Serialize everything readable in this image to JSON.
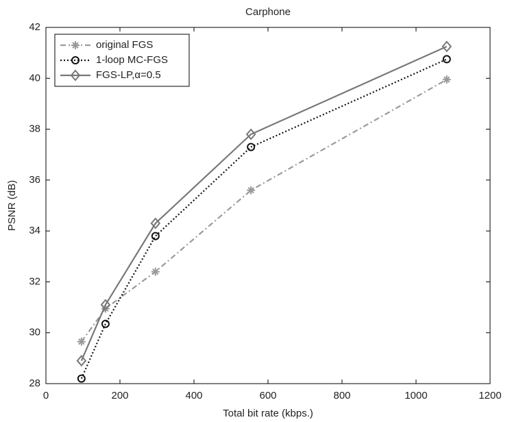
{
  "chart_data": {
    "type": "line",
    "title": "Carphone",
    "x_label": "Total bit rate (kbps.)",
    "y_label": "PSNR (dB)",
    "xlim": [
      0,
      1200
    ],
    "xticks": [
      0,
      200,
      400,
      600,
      800,
      1000,
      1200
    ],
    "ylim": [
      28,
      42
    ],
    "yticks": [
      28,
      30,
      32,
      34,
      36,
      38,
      40,
      42
    ],
    "grid": false,
    "legend": "upper-left",
    "series": [
      {
        "name": "original FGS",
        "color": "#9a9a9a",
        "style": "dash-dot",
        "marker": "star",
        "x": [
          96,
          161,
          296,
          554,
          1083
        ],
        "values": [
          29.65,
          30.95,
          32.4,
          35.6,
          39.95
        ]
      },
      {
        "name": "1-loop MC-FGS",
        "color": "#111111",
        "style": "dotted",
        "marker": "circle",
        "x": [
          96,
          161,
          296,
          554,
          1083
        ],
        "values": [
          28.2,
          30.35,
          33.8,
          37.3,
          40.75
        ]
      },
      {
        "name": "FGS-LP,α=0.5",
        "color": "#777777",
        "style": "solid",
        "marker": "diamond",
        "x": [
          96,
          161,
          296,
          554,
          1083
        ],
        "values": [
          28.9,
          31.1,
          34.3,
          37.8,
          41.25
        ]
      }
    ]
  }
}
